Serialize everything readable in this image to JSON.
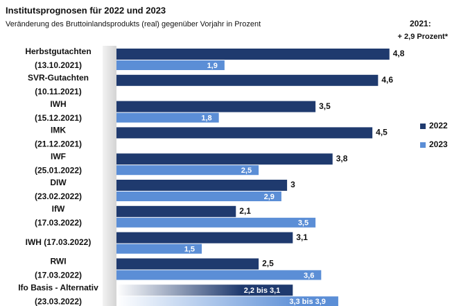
{
  "chart_data": {
    "type": "bar",
    "orientation": "horizontal",
    "title": "Institutsprognosen für 2022 und 2023",
    "subtitle": "Veränderung des Bruttoinlandsprodukts (real) gegenüber Vorjahr in Prozent",
    "annotation": [
      "2021:",
      "+ 2,9 Prozent*"
    ],
    "categories": [
      [
        "Herbstgutachten",
        "(13.10.2021)"
      ],
      [
        "SVR-Gutachten",
        "(10.11.2021)"
      ],
      [
        "IWH",
        "(15.12.2021)"
      ],
      [
        "IMK",
        "(21.12.2021)"
      ],
      [
        "IWF",
        "(25.01.2022)"
      ],
      [
        "DIW",
        "(23.02.2022)"
      ],
      [
        "IfW",
        "(17.03.2022)"
      ],
      [
        "IWH (17.03.2022)"
      ],
      [
        "RWI",
        "(17.03.2022)"
      ],
      [
        "Ifo Basis - Alternativ",
        "(23.03.2022)"
      ]
    ],
    "series": [
      {
        "name": "2022",
        "color": "#1f3a6e",
        "values": [
          4.8,
          4.6,
          3.5,
          4.5,
          3.8,
          3,
          2.1,
          3.1,
          2.5,
          [
            2.2,
            3.1
          ]
        ],
        "value_labels": [
          "4,8",
          "4,6",
          "3,5",
          "4,5",
          "3,8",
          "3",
          "2,1",
          "3,1",
          "2,5",
          "2,2 bis 3,1"
        ]
      },
      {
        "name": "2023",
        "color": "#5b8ed6",
        "values": [
          1.9,
          null,
          1.8,
          null,
          2.5,
          2.9,
          3.5,
          1.5,
          3.6,
          [
            3.3,
            3.9
          ]
        ],
        "value_labels": [
          "1,9",
          null,
          "1,8",
          null,
          "2,5",
          "2,9",
          "3,5",
          "1,5",
          "3,6",
          "3,3 bis 3,9"
        ]
      }
    ],
    "xlim": [
      0,
      5.9
    ],
    "legend": "right"
  }
}
